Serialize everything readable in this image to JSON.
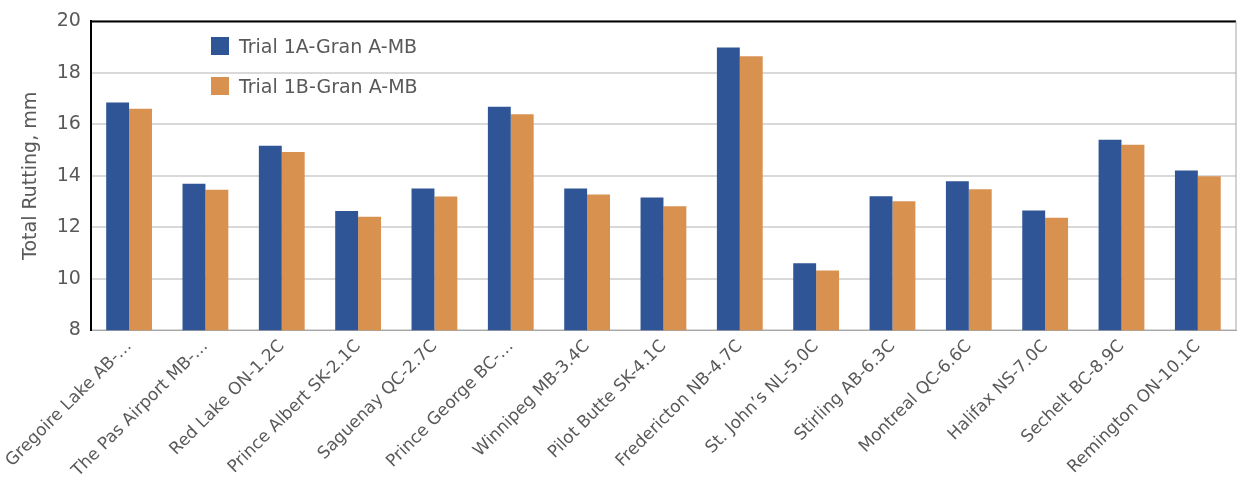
{
  "chart_data": {
    "type": "bar",
    "ylabel": "Total Rutting, mm",
    "categories": [
      "Gregoire Lake AB-…",
      "The Pas Airport MB-…",
      "Red Lake ON-1.2C",
      "Prince Albert SK-2.1C",
      "Saguenay QC-2.7C",
      "Prince George BC-…",
      "Winnipeg MB-3.4C",
      "Pilot Butte SK-4.1C",
      "Fredericton NB-4.7C",
      "St. John’s NL-5.0C",
      "Stirling AB-6.3C",
      "Montreal QC-6.6C",
      "Halifax NS-7.0C",
      "Sechelt BC-8.9C",
      "Remington ON-10.1C"
    ],
    "series": [
      {
        "name": "Trial 1A-Gran A-MB",
        "color": "#2f5597",
        "values": [
          16.85,
          13.69,
          15.17,
          12.63,
          13.51,
          16.68,
          13.51,
          13.16,
          18.99,
          10.6,
          13.21,
          13.79,
          12.65,
          15.4,
          14.21
        ]
      },
      {
        "name": "Trial 1B-Gran A-MB",
        "color": "#d99150",
        "values": [
          16.61,
          13.46,
          14.93,
          12.41,
          13.2,
          16.39,
          13.28,
          12.82,
          18.65,
          10.32,
          13.01,
          13.48,
          12.37,
          15.21,
          13.98
        ]
      }
    ],
    "ylim": [
      8,
      20
    ],
    "yticks": [
      8,
      10,
      12,
      14,
      16,
      18,
      20
    ],
    "grid": "y",
    "legend": "top left"
  }
}
